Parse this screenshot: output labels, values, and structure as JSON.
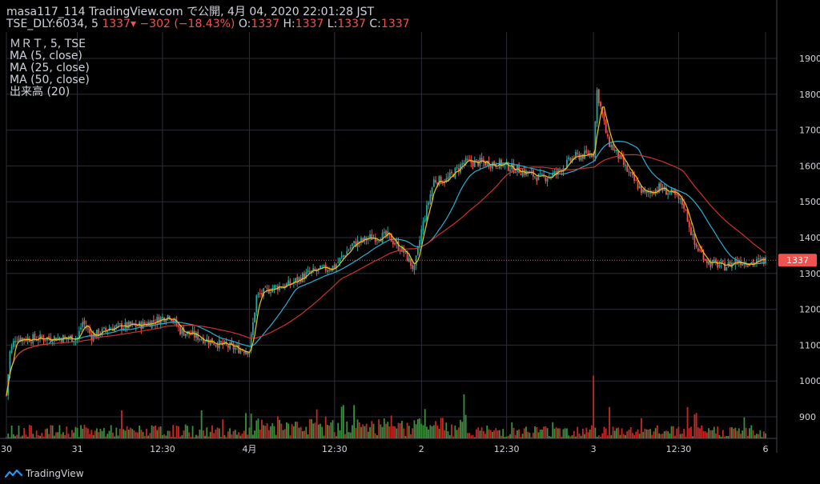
{
  "header": {
    "line1": "masa117_114 TradingView.com で公開, 4月 04, 2020 22:01:28 JST",
    "symbol": "TSE_DLY:6034, 5",
    "last": "1337",
    "change": "−302 (−18.43%)",
    "o_label": "O:",
    "o_val": "1337",
    "h_label": "H:",
    "h_val": "1337",
    "l_label": "L:",
    "l_val": "1337",
    "c_label": "C:",
    "c_val": "1337"
  },
  "legend": [
    "ＭＲＴ, 5, TSE",
    "MA (5, close)",
    "MA (25, close)",
    "MA (50, close)",
    "出来高 (20)"
  ],
  "brand": "TradingView",
  "colors": {
    "up": "#26a69a",
    "down": "#ef5350",
    "ma5": "#f0c419",
    "ma25": "#27b0d6",
    "ma50": "#d03030",
    "vol_up": "#3d8f3d",
    "vol_down": "#c62828",
    "grid": "#2a2e39",
    "price_line": "#ef5350"
  },
  "chart_data": {
    "type": "candlestick",
    "ylim": [
      850,
      1960
    ],
    "y_ticks": [
      900,
      1000,
      1100,
      1200,
      1300,
      1400,
      1500,
      1600,
      1700,
      1800,
      1900
    ],
    "x_ticks": [
      {
        "label": "30",
        "t": 0
      },
      {
        "label": "31",
        "t": 40
      },
      {
        "label": "12:30",
        "t": 88
      },
      {
        "label": "4月",
        "t": 137
      },
      {
        "label": "12:30",
        "t": 185
      },
      {
        "label": "2",
        "t": 234
      },
      {
        "label": "12:30",
        "t": 282
      },
      {
        "label": "3",
        "t": 331
      },
      {
        "label": "12:30",
        "t": 379
      },
      {
        "label": "6",
        "t": 428
      }
    ],
    "last_price": 1337,
    "last_price_label": "1337",
    "price_anchors": [
      [
        0,
        960
      ],
      [
        2,
        1080
      ],
      [
        5,
        1120
      ],
      [
        14,
        1118
      ],
      [
        25,
        1120
      ],
      [
        40,
        1120
      ],
      [
        43,
        1165
      ],
      [
        48,
        1125
      ],
      [
        60,
        1150
      ],
      [
        75,
        1155
      ],
      [
        85,
        1170
      ],
      [
        92,
        1185
      ],
      [
        98,
        1140
      ],
      [
        110,
        1120
      ],
      [
        122,
        1100
      ],
      [
        130,
        1090
      ],
      [
        137,
        1085
      ],
      [
        141,
        1235
      ],
      [
        150,
        1260
      ],
      [
        160,
        1270
      ],
      [
        170,
        1300
      ],
      [
        185,
        1320
      ],
      [
        195,
        1380
      ],
      [
        205,
        1400
      ],
      [
        215,
        1405
      ],
      [
        224,
        1360
      ],
      [
        230,
        1310
      ],
      [
        234,
        1420
      ],
      [
        241,
        1560
      ],
      [
        248,
        1560
      ],
      [
        258,
        1610
      ],
      [
        268,
        1610
      ],
      [
        279,
        1605
      ],
      [
        291,
        1585
      ],
      [
        302,
        1565
      ],
      [
        310,
        1580
      ],
      [
        320,
        1625
      ],
      [
        331,
        1635
      ],
      [
        333,
        1810
      ],
      [
        339,
        1670
      ],
      [
        346,
        1620
      ],
      [
        352,
        1570
      ],
      [
        360,
        1520
      ],
      [
        368,
        1540
      ],
      [
        376,
        1520
      ],
      [
        382,
        1490
      ],
      [
        388,
        1380
      ],
      [
        396,
        1330
      ],
      [
        405,
        1320
      ],
      [
        412,
        1335
      ],
      [
        422,
        1330
      ],
      [
        428,
        1337
      ]
    ],
    "volume_spikes": [
      [
        44,
        0.35
      ],
      [
        196,
        0.85
      ],
      [
        236,
        0.75
      ],
      [
        258,
        1.0
      ],
      [
        331,
        1.6
      ],
      [
        340,
        0.8
      ],
      [
        384,
        0.8
      ]
    ]
  }
}
